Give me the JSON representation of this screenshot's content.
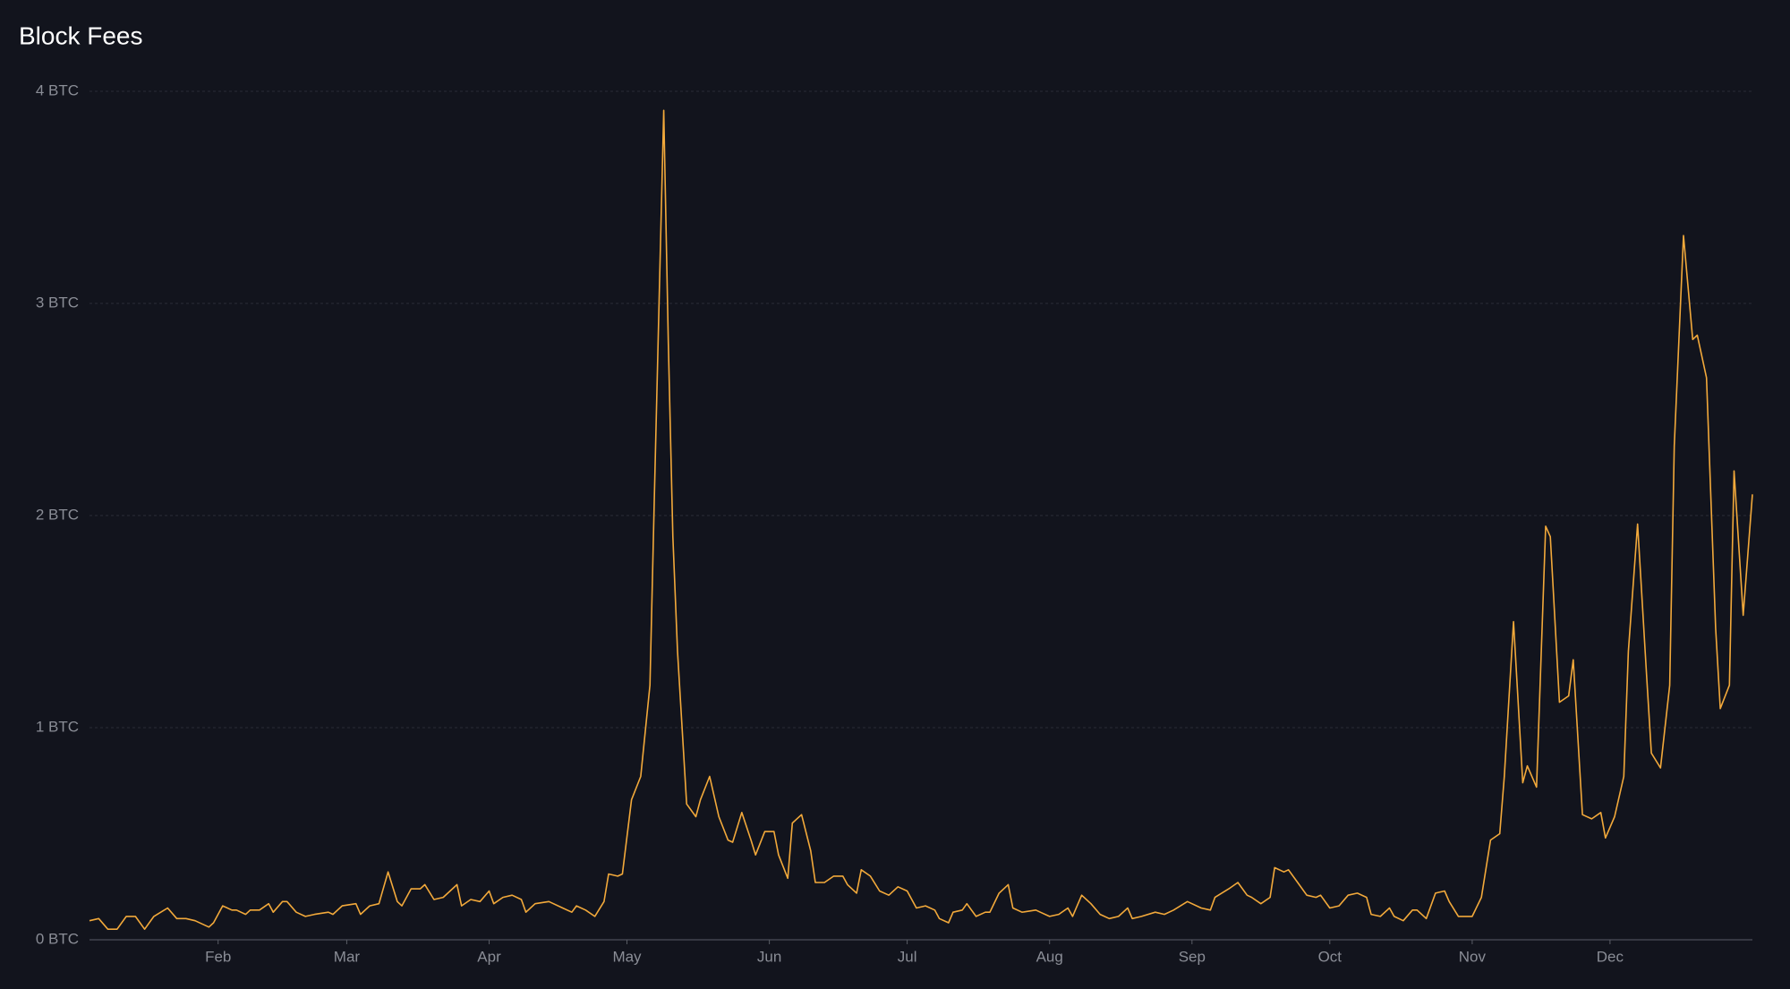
{
  "chart_data": {
    "type": "line",
    "title": "Block Fees",
    "x": [
      3,
      5,
      7,
      9,
      11,
      13,
      15,
      17,
      20,
      22,
      24,
      26,
      29,
      30,
      32,
      34,
      35,
      37,
      38,
      40,
      42,
      43,
      45,
      46,
      48,
      50,
      52,
      55,
      56,
      58,
      61,
      62,
      64,
      66,
      68,
      70,
      71,
      73,
      75,
      76,
      78,
      80,
      83,
      84,
      86,
      88,
      90,
      91,
      93,
      95,
      97,
      98,
      100,
      103,
      106,
      108,
      109,
      111,
      113,
      115,
      116,
      118,
      119,
      121,
      123,
      125,
      126,
      128,
      129,
      130,
      131,
      133,
      135,
      136,
      138,
      140,
      142,
      143,
      145,
      147,
      148,
      150,
      152,
      153,
      155,
      156,
      158,
      160,
      161,
      163,
      165,
      167,
      168,
      170,
      171,
      173,
      175,
      177,
      179,
      181,
      183,
      185,
      187,
      188,
      190,
      191,
      193,
      194,
      196,
      198,
      199,
      201,
      203,
      204,
      206,
      209,
      210,
      212,
      214,
      216,
      217,
      219,
      221,
      223,
      225,
      227,
      229,
      230,
      232,
      235,
      237,
      239,
      242,
      245,
      247,
      248,
      251,
      253,
      255,
      256,
      258,
      260,
      261,
      263,
      264,
      266,
      268,
      270,
      271,
      273,
      275,
      277,
      279,
      281,
      282,
      284,
      286,
      287,
      289,
      291,
      292,
      294,
      296,
      298,
      299,
      301,
      304,
      306,
      308,
      310,
      311,
      313,
      315,
      316,
      318,
      320,
      321,
      323,
      325,
      326,
      328,
      330,
      332,
      333,
      335,
      337,
      338,
      340,
      342,
      343,
      345,
      347,
      348,
      350,
      352,
      353,
      355,
      357,
      358,
      360,
      361,
      363,
      365
    ],
    "series": [
      {
        "name": "Block Fees",
        "color": "#f2a93b",
        "values": [
          0.09,
          0.1,
          0.05,
          0.05,
          0.11,
          0.11,
          0.05,
          0.11,
          0.15,
          0.1,
          0.1,
          0.09,
          0.06,
          0.08,
          0.16,
          0.14,
          0.14,
          0.12,
          0.14,
          0.14,
          0.17,
          0.13,
          0.18,
          0.18,
          0.13,
          0.11,
          0.12,
          0.13,
          0.12,
          0.16,
          0.17,
          0.12,
          0.16,
          0.17,
          0.32,
          0.18,
          0.16,
          0.24,
          0.24,
          0.26,
          0.19,
          0.2,
          0.26,
          0.16,
          0.19,
          0.18,
          0.23,
          0.17,
          0.2,
          0.21,
          0.19,
          0.13,
          0.17,
          0.18,
          0.15,
          0.13,
          0.16,
          0.14,
          0.11,
          0.18,
          0.31,
          0.3,
          0.31,
          0.66,
          0.77,
          1.2,
          2.12,
          3.91,
          2.82,
          1.9,
          1.36,
          0.64,
          0.58,
          0.66,
          0.77,
          0.58,
          0.47,
          0.46,
          0.6,
          0.47,
          0.4,
          0.51,
          0.51,
          0.4,
          0.29,
          0.55,
          0.59,
          0.42,
          0.27,
          0.27,
          0.3,
          0.3,
          0.26,
          0.22,
          0.33,
          0.3,
          0.23,
          0.21,
          0.25,
          0.23,
          0.15,
          0.16,
          0.14,
          0.1,
          0.08,
          0.13,
          0.14,
          0.17,
          0.11,
          0.13,
          0.13,
          0.22,
          0.26,
          0.15,
          0.13,
          0.14,
          0.13,
          0.11,
          0.12,
          0.15,
          0.11,
          0.21,
          0.17,
          0.12,
          0.1,
          0.11,
          0.15,
          0.1,
          0.11,
          0.13,
          0.12,
          0.14,
          0.18,
          0.15,
          0.14,
          0.2,
          0.24,
          0.27,
          0.21,
          0.2,
          0.17,
          0.2,
          0.34,
          0.32,
          0.33,
          0.27,
          0.21,
          0.2,
          0.21,
          0.15,
          0.16,
          0.21,
          0.22,
          0.2,
          0.12,
          0.11,
          0.15,
          0.11,
          0.09,
          0.14,
          0.14,
          0.1,
          0.22,
          0.23,
          0.18,
          0.11,
          0.11,
          0.2,
          0.47,
          0.5,
          0.77,
          1.5,
          0.74,
          0.82,
          0.72,
          1.95,
          1.9,
          1.12,
          1.15,
          1.32,
          0.59,
          0.57,
          0.6,
          0.48,
          0.58,
          0.77,
          1.36,
          1.96,
          1.23,
          0.88,
          0.81,
          1.2,
          2.33,
          3.32,
          2.83,
          2.85,
          2.65,
          1.47,
          1.09,
          1.2,
          2.21,
          1.53,
          2.1
        ]
      }
    ],
    "xlim": [
      3,
      365
    ],
    "xticks": [
      {
        "value": 31,
        "label": "Feb"
      },
      {
        "value": 59,
        "label": "Mar"
      },
      {
        "value": 90,
        "label": "Apr"
      },
      {
        "value": 120,
        "label": "May"
      },
      {
        "value": 151,
        "label": "Jun"
      },
      {
        "value": 181,
        "label": "Jul"
      },
      {
        "value": 212,
        "label": "Aug"
      },
      {
        "value": 243,
        "label": "Sep"
      },
      {
        "value": 273,
        "label": "Oct"
      },
      {
        "value": 304,
        "label": "Nov"
      },
      {
        "value": 334,
        "label": "Dec"
      }
    ],
    "ylim": [
      0,
      4
    ],
    "yticks": [
      {
        "value": 0,
        "label": "0 BTC"
      },
      {
        "value": 1,
        "label": "1 BTC"
      },
      {
        "value": 2,
        "label": "2 BTC"
      },
      {
        "value": 3,
        "label": "3 BTC"
      },
      {
        "value": 4,
        "label": "4 BTC"
      }
    ],
    "grid": true
  }
}
